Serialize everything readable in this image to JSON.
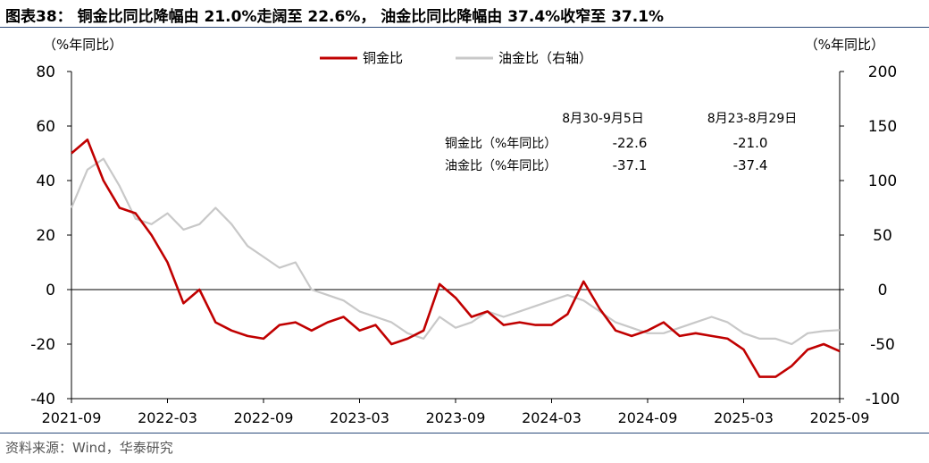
{
  "title": "图表38： 铜金比同比降幅由 21.0%走阔至 22.6%， 油金比同比降幅由 37.4%收窄至 37.1%",
  "source": "资料来源：Wind，华泰研究",
  "chart_data": {
    "type": "line",
    "ylabel_left": "（%年同比）",
    "ylabel_right": "（%年同比）",
    "ylim_left": [
      -40,
      80
    ],
    "yticks_left": [
      -40,
      -20,
      0,
      20,
      40,
      60,
      80
    ],
    "ylim_right": [
      -100,
      200
    ],
    "yticks_right": [
      -100,
      -50,
      0,
      50,
      100,
      150,
      200
    ],
    "xlim": [
      "2021-09",
      "2025-09"
    ],
    "xticks": [
      "2021-09",
      "2022-03",
      "2022-09",
      "2023-03",
      "2023-09",
      "2024-03",
      "2024-09",
      "2025-03",
      "2025-09"
    ],
    "legend_position": "top-center",
    "series": [
      {
        "name": "铜金比",
        "axis": "left",
        "color": "#c00000",
        "x": [
          "2021-09",
          "2021-10",
          "2021-11",
          "2021-12",
          "2022-01",
          "2022-02",
          "2022-03",
          "2022-04",
          "2022-05",
          "2022-06",
          "2022-07",
          "2022-08",
          "2022-09",
          "2022-10",
          "2022-11",
          "2022-12",
          "2023-01",
          "2023-02",
          "2023-03",
          "2023-04",
          "2023-05",
          "2023-06",
          "2023-07",
          "2023-08",
          "2023-09",
          "2023-10",
          "2023-11",
          "2023-12",
          "2024-01",
          "2024-02",
          "2024-03",
          "2024-04",
          "2024-05",
          "2024-06",
          "2024-07",
          "2024-08",
          "2024-09",
          "2024-10",
          "2024-11",
          "2024-12",
          "2025-01",
          "2025-02",
          "2025-03",
          "2025-04",
          "2025-05",
          "2025-06",
          "2025-07",
          "2025-08",
          "2025-09"
        ],
        "y": [
          50,
          55,
          40,
          30,
          28,
          20,
          10,
          -5,
          0,
          -12,
          -15,
          -17,
          -18,
          -13,
          -12,
          -15,
          -12,
          -10,
          -15,
          -13,
          -20,
          -18,
          -15,
          2,
          -3,
          -10,
          -8,
          -13,
          -12,
          -13,
          -13,
          -9,
          3,
          -7,
          -15,
          -17,
          -15,
          -12,
          -17,
          -16,
          -17,
          -18,
          -22,
          -32,
          -32,
          -28,
          -22,
          -20,
          -22.6
        ]
      },
      {
        "name": "油金比（右轴）",
        "axis": "right",
        "color": "#c8c8c8",
        "x": [
          "2021-09",
          "2021-10",
          "2021-11",
          "2021-12",
          "2022-01",
          "2022-02",
          "2022-03",
          "2022-04",
          "2022-05",
          "2022-06",
          "2022-07",
          "2022-08",
          "2022-09",
          "2022-10",
          "2022-11",
          "2022-12",
          "2023-01",
          "2023-02",
          "2023-03",
          "2023-04",
          "2023-05",
          "2023-06",
          "2023-07",
          "2023-08",
          "2023-09",
          "2023-10",
          "2023-11",
          "2023-12",
          "2024-01",
          "2024-02",
          "2024-03",
          "2024-04",
          "2024-05",
          "2024-06",
          "2024-07",
          "2024-08",
          "2024-09",
          "2024-10",
          "2024-11",
          "2024-12",
          "2025-01",
          "2025-02",
          "2025-03",
          "2025-04",
          "2025-05",
          "2025-06",
          "2025-07",
          "2025-08",
          "2025-09"
        ],
        "y": [
          75,
          110,
          120,
          95,
          65,
          60,
          70,
          55,
          60,
          75,
          60,
          40,
          30,
          20,
          25,
          0,
          -5,
          -10,
          -20,
          -25,
          -30,
          -40,
          -45,
          -25,
          -35,
          -30,
          -20,
          -25,
          -20,
          -15,
          -10,
          -5,
          -10,
          -20,
          -30,
          -35,
          -40,
          -40,
          -35,
          -30,
          -25,
          -30,
          -40,
          -45,
          -45,
          -50,
          -40,
          -38,
          -37.1
        ]
      }
    ],
    "annotation_table": {
      "columns": [
        "8月30-9月5日",
        "8月23-8月29日"
      ],
      "rows": [
        {
          "label": "铜金比（%年同比）",
          "values": [
            "-22.6",
            "-21.0"
          ]
        },
        {
          "label": "油金比（%年同比）",
          "values": [
            "-37.1",
            "-37.4"
          ]
        }
      ]
    }
  }
}
